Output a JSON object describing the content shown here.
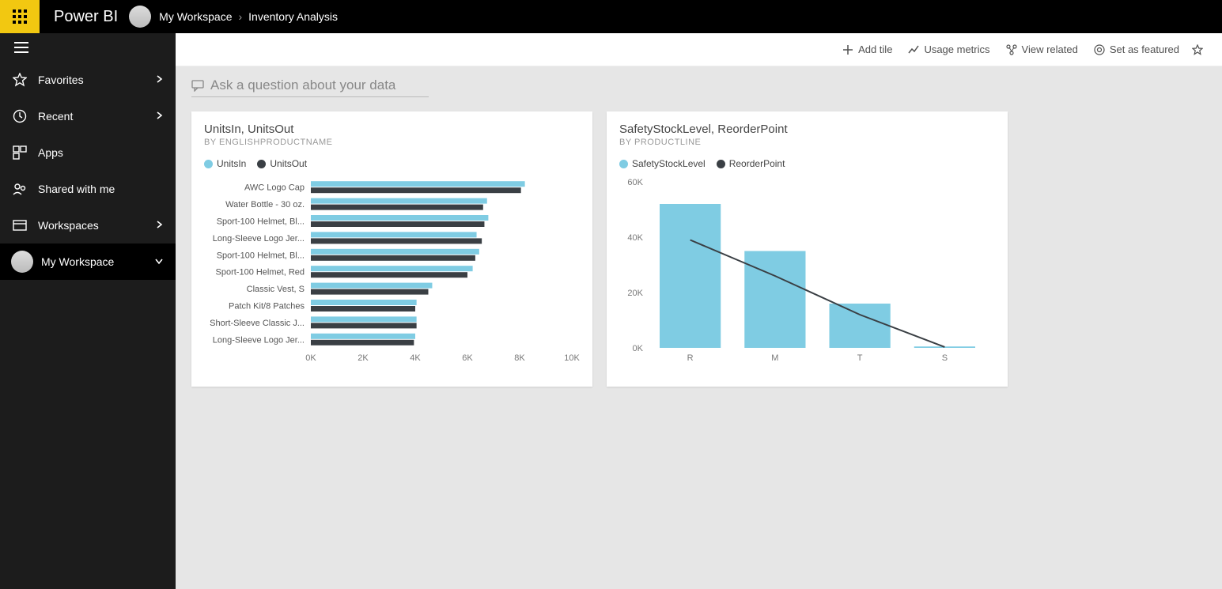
{
  "app": {
    "brand": "Power BI"
  },
  "breadcrumb": {
    "workspace": "My Workspace",
    "page": "Inventory Analysis"
  },
  "sidebar": {
    "items": [
      {
        "label": "Favorites",
        "icon": "star",
        "chev": "right"
      },
      {
        "label": "Recent",
        "icon": "clock",
        "chev": "right"
      },
      {
        "label": "Apps",
        "icon": "apps",
        "chev": null
      },
      {
        "label": "Shared with me",
        "icon": "shared",
        "chev": null
      },
      {
        "label": "Workspaces",
        "icon": "workspace",
        "chev": "right"
      },
      {
        "label": "My Workspace",
        "icon": "avatar",
        "chev": "down",
        "active": true
      }
    ]
  },
  "toolbar": {
    "addTile": "Add tile",
    "usageMetrics": "Usage metrics",
    "viewRelated": "View related",
    "setFeatured": "Set as featured"
  },
  "qna": {
    "placeholder": "Ask a question about your data"
  },
  "colors": {
    "series1": "#7fcce3",
    "series2": "#3a3f44",
    "axisText": "#777777",
    "grid": "#e8e8e8"
  },
  "chart1": {
    "title": "UnitsIn, UnitsOut",
    "subtitle": "By EnglishProductName",
    "legend": [
      "UnitsIn",
      "UnitsOut"
    ],
    "type": "grouped-horizontal-bar",
    "xmax": 10000,
    "xtick_step": 2000,
    "xtick_labels": [
      "0K",
      "2K",
      "4K",
      "6K",
      "8K",
      "10K"
    ],
    "bar_colors": [
      "#7fcce3",
      "#3a3f44"
    ],
    "label_fontsize": 11,
    "axis_fontsize": 11,
    "categories": [
      "AWC Logo Cap",
      "Water Bottle - 30 oz.",
      "Sport-100 Helmet, Bl...",
      "Long-Sleeve Logo Jer...",
      "Sport-100 Helmet, Bl...",
      "Sport-100 Helmet, Red",
      "Classic Vest, S",
      "Patch Kit/8 Patches",
      "Short-Sleeve Classic J...",
      "Long-Sleeve Logo Jer..."
    ],
    "series": [
      [
        8200,
        6750,
        6800,
        6350,
        6450,
        6200,
        4650,
        4050,
        4050,
        4000
      ],
      [
        8050,
        6600,
        6650,
        6550,
        6300,
        6000,
        4500,
        4000,
        4050,
        3950
      ]
    ]
  },
  "chart2": {
    "title": "SafetyStockLevel, ReorderPoint",
    "subtitle": "By ProductLine",
    "legend": [
      "SafetyStockLevel",
      "ReorderPoint"
    ],
    "type": "bar+line",
    "ymax": 60000,
    "ytick_step": 20000,
    "ytick_labels": [
      "0K",
      "20K",
      "40K",
      "60K"
    ],
    "bar_color": "#7fcce3",
    "line_color": "#3a3f44",
    "axis_fontsize": 11,
    "categories": [
      "R",
      "M",
      "T",
      "S"
    ],
    "bars": [
      52000,
      35000,
      16000,
      500
    ],
    "line": [
      39000,
      26000,
      12000,
      300
    ]
  }
}
